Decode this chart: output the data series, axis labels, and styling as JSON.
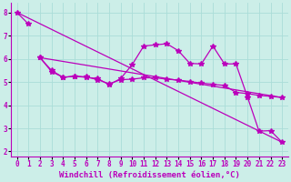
{
  "background_color": "#cceee8",
  "grid_color": "#aaddd8",
  "line_color": "#bb00bb",
  "marker": "*",
  "markersize": 4,
  "linewidth": 0.9,
  "xlabel": "Windchill (Refroidissement éolien,°C)",
  "xlabel_fontsize": 6.5,
  "tick_fontsize": 5.5,
  "xlim": [
    -0.5,
    23.5
  ],
  "ylim": [
    1.8,
    8.4
  ],
  "yticks": [
    2,
    3,
    4,
    5,
    6,
    7,
    8
  ],
  "xticks": [
    0,
    1,
    2,
    3,
    4,
    5,
    6,
    7,
    8,
    9,
    10,
    11,
    12,
    13,
    14,
    15,
    16,
    17,
    18,
    19,
    20,
    21,
    22,
    23
  ],
  "line1_x": [
    0,
    1
  ],
  "line1_y": [
    8.0,
    7.5
  ],
  "line2_x": [
    2,
    3,
    4,
    5,
    6,
    7,
    8,
    9,
    10,
    11,
    12,
    13,
    14,
    15,
    16,
    17,
    18,
    19,
    20,
    21,
    22,
    23
  ],
  "line2_y": [
    6.05,
    5.5,
    5.2,
    5.25,
    5.2,
    5.15,
    4.88,
    5.15,
    5.75,
    6.55,
    6.6,
    6.65,
    6.35,
    5.8,
    5.78,
    6.55,
    5.78,
    5.78,
    4.35,
    2.88,
    2.9,
    2.4
  ],
  "line3_x": [
    2,
    3,
    4,
    5,
    6,
    7,
    8,
    9,
    10,
    11,
    12,
    13,
    14,
    15,
    16,
    17,
    18,
    19,
    20,
    21,
    22,
    23
  ],
  "line3_y": [
    6.05,
    5.45,
    5.2,
    5.25,
    5.22,
    5.1,
    4.92,
    5.1,
    5.12,
    5.18,
    5.18,
    5.12,
    5.08,
    5.02,
    4.95,
    4.9,
    4.85,
    4.55,
    4.5,
    4.42,
    4.38,
    4.33
  ],
  "line4_x": [
    0,
    23
  ],
  "line4_y": [
    8.0,
    2.4
  ],
  "line5_x": [
    2,
    23
  ],
  "line5_y": [
    6.05,
    4.33
  ]
}
